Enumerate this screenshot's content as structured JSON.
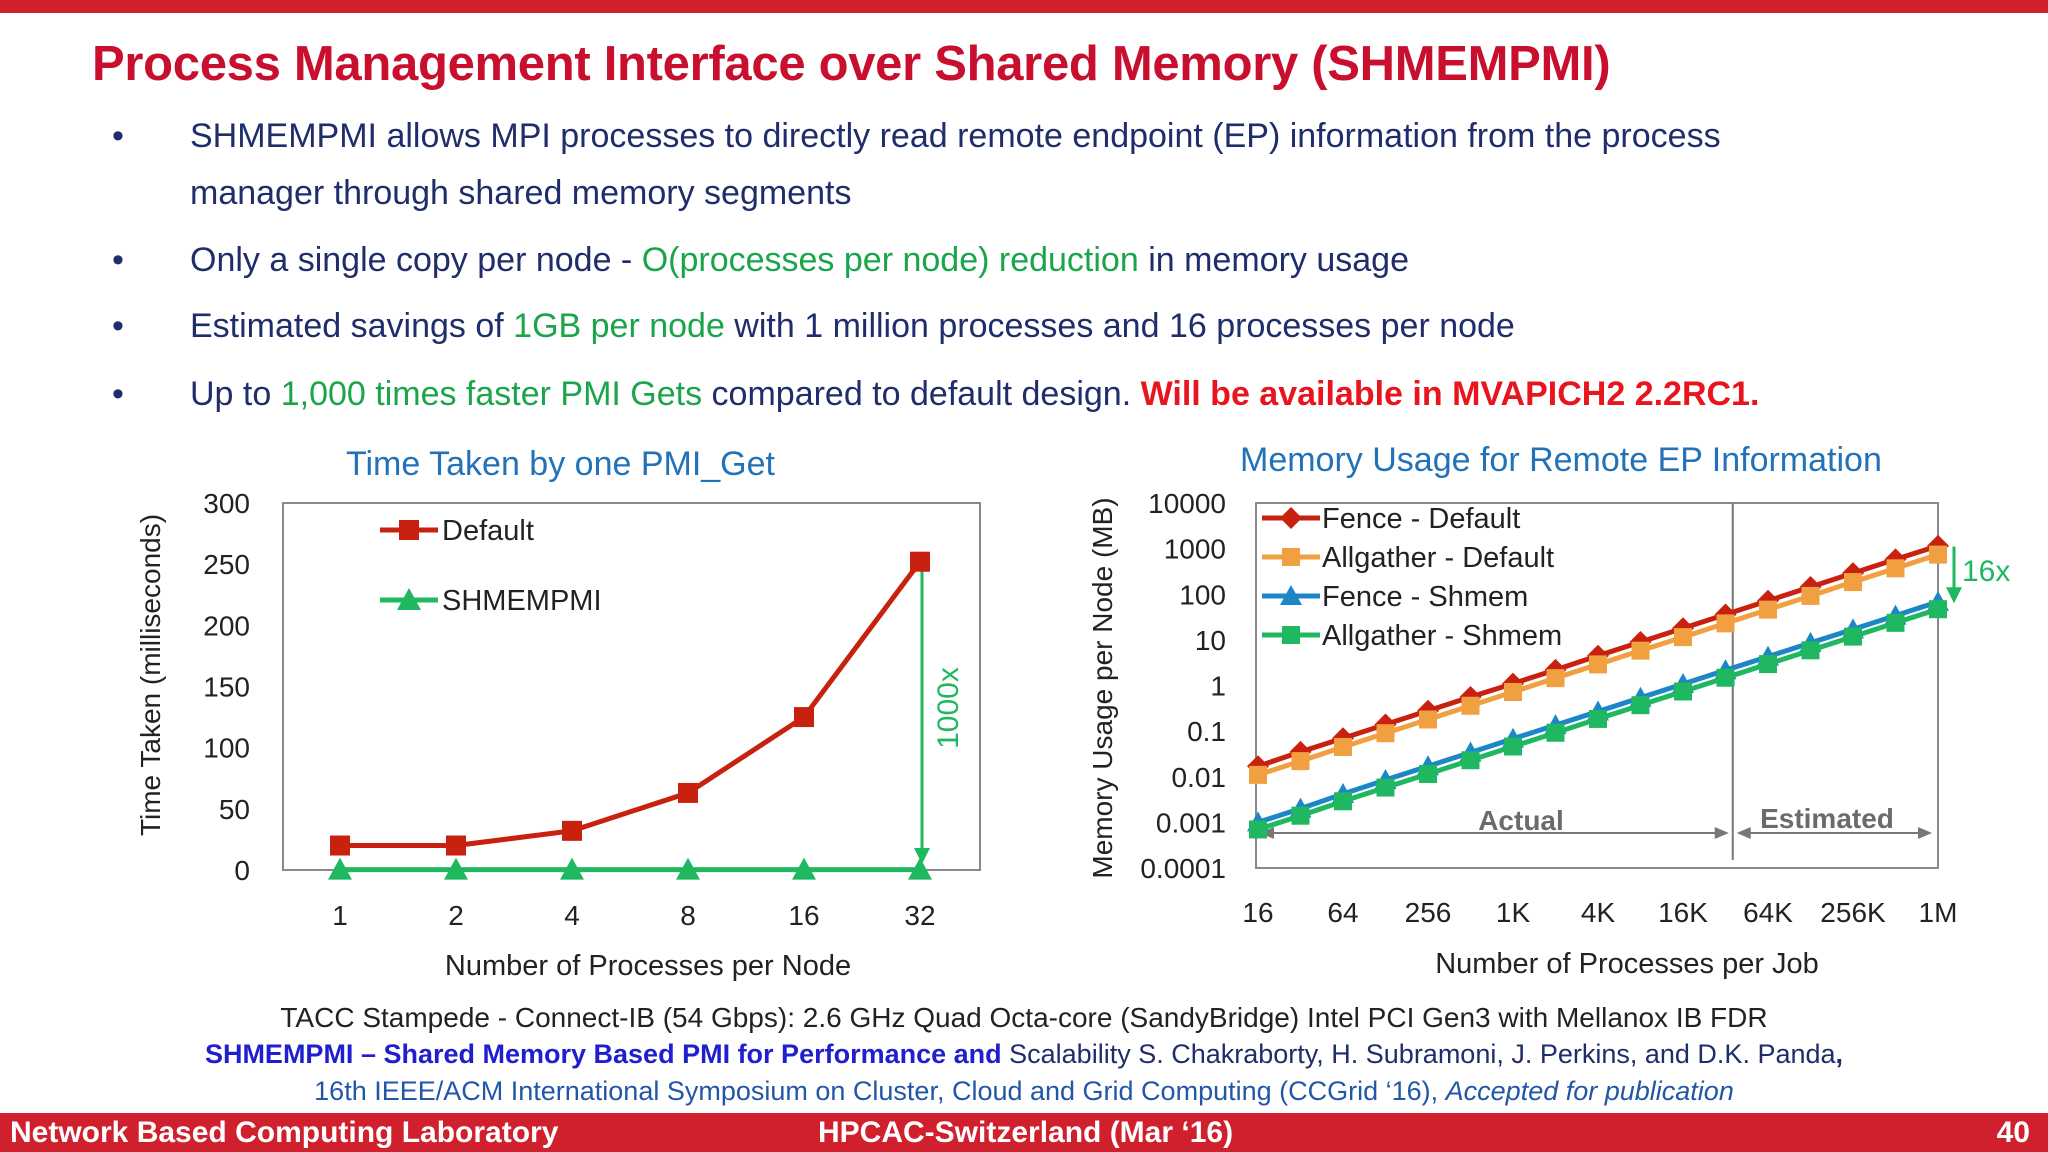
{
  "slide": {
    "title": "Process Management Interface over Shared Memory (SHMEMPMI)",
    "bullet_symbol": "•"
  },
  "bullets": [
    {
      "line1": "SHMEMPMI allows MPI processes to directly read remote endpoint (EP) information from the process",
      "line2": "manager through shared memory segments"
    },
    {
      "pre": "Only a single copy per node -  ",
      "hl": "O(processes per node) reduction",
      "post": " in memory usage"
    },
    {
      "pre": "Estimated savings of ",
      "hl": "1GB per node",
      "post": " with 1 million processes and 16 processes per node"
    },
    {
      "pre": "Up to ",
      "hl": "1,000 times faster PMI Gets",
      "post": " compared to default design. ",
      "bold": "Will be available in MVAPICH2 2.2RC1."
    }
  ],
  "colors": {
    "title_red": "#c8102e",
    "text_navy": "#1f2d6b",
    "highlight_green": "#1aa54a",
    "chart_blue": "#2272b8",
    "series_red": "#c8210f",
    "series_green": "#1fb860",
    "series_orange": "#f0a040",
    "series_blue": "#1c86c8",
    "footer_red": "#d0202e"
  },
  "chart_data": [
    {
      "type": "line",
      "title": "Time Taken by one PMI_Get",
      "xlabel": "Number of Processes per Node",
      "ylabel": "Time Taken (milliseconds)",
      "categories": [
        "1",
        "2",
        "4",
        "8",
        "16",
        "32"
      ],
      "ylim": [
        0,
        300
      ],
      "yticks": [
        "0",
        "50",
        "100",
        "150",
        "200",
        "250",
        "300"
      ],
      "legend_position": "top-left",
      "series": [
        {
          "name": "Default",
          "marker": "square",
          "color": "#c8210f",
          "values": [
            20,
            20,
            32,
            63,
            125,
            252
          ]
        },
        {
          "name": "SHMEMPMI",
          "marker": "triangle",
          "color": "#1fb860",
          "values": [
            0.3,
            0.3,
            0.3,
            0.3,
            0.3,
            0.3
          ]
        }
      ],
      "annotation": "1000x"
    },
    {
      "type": "line",
      "title": "Memory Usage for Remote EP Information",
      "xlabel": "Number of Processes per Job",
      "ylabel": "Memory Usage per Node (MB)",
      "categories": [
        "16",
        "32",
        "64",
        "128",
        "256",
        "512",
        "1K",
        "2K",
        "4K",
        "8K",
        "16K",
        "32K",
        "64K",
        "128K",
        "256K",
        "512K",
        "1M"
      ],
      "tick_labels": [
        "16",
        "64",
        "256",
        "1K",
        "4K",
        "16K",
        "64K",
        "256K",
        "1M"
      ],
      "yscale": "log",
      "ylim": [
        0.0001,
        10000
      ],
      "yticks": [
        "0.0001",
        "0.001",
        "0.01",
        "0.1",
        "1",
        "10",
        "100",
        "1000",
        "10000"
      ],
      "legend_position": "top-left",
      "series": [
        {
          "name": "Fence - Default",
          "marker": "diamond",
          "color": "#c8210f",
          "values": [
            0.017,
            0.035,
            0.07,
            0.14,
            0.28,
            0.56,
            1.1,
            2.2,
            4.5,
            9,
            18,
            36,
            72,
            144,
            290,
            580,
            1150
          ]
        },
        {
          "name": "Allgather - Default",
          "marker": "square",
          "color": "#f0a040",
          "values": [
            0.011,
            0.022,
            0.045,
            0.09,
            0.18,
            0.36,
            0.72,
            1.45,
            2.9,
            5.8,
            11.5,
            23,
            46,
            92,
            185,
            370,
            740
          ]
        },
        {
          "name": "Fence - Shmem",
          "marker": "triangle",
          "color": "#1c86c8",
          "values": [
            0.001,
            0.002,
            0.0042,
            0.0085,
            0.017,
            0.034,
            0.068,
            0.135,
            0.27,
            0.54,
            1.08,
            2.16,
            4.3,
            8.6,
            17,
            34,
            68
          ]
        },
        {
          "name": "Allgather - Shmem",
          "marker": "square",
          "color": "#1fb860",
          "values": [
            0.0007,
            0.0014,
            0.0029,
            0.0058,
            0.0115,
            0.023,
            0.046,
            0.092,
            0.185,
            0.37,
            0.74,
            1.48,
            2.95,
            5.9,
            11.8,
            23.6,
            47
          ]
        }
      ],
      "annotation": "16x",
      "regions": [
        "Actual",
        "Estimated"
      ]
    }
  ],
  "captions": {
    "system": "TACC Stampede - Connect-IB (54 Gbps): 2.6 GHz Quad Octa-core (SandyBridge) Intel PCI Gen3 with Mellanox IB FDR",
    "paper_bold": "SHMEMPMI – Shared Memory Based PMI for Performance and",
    "paper_rest": " Scalability S. Chakraborty, H. Subramoni, J. Perkins, and D.K. Panda",
    "paper_comma": ",",
    "venue": "16th IEEE/ACM International Symposium on Cluster, Cloud and Grid Computing (CCGrid ‘16), ",
    "venue_italic": "Accepted for publication"
  },
  "footer": {
    "left": "Network Based Computing Laboratory",
    "center": "HPCAC-Switzerland (Mar ‘16)",
    "page": "40"
  }
}
